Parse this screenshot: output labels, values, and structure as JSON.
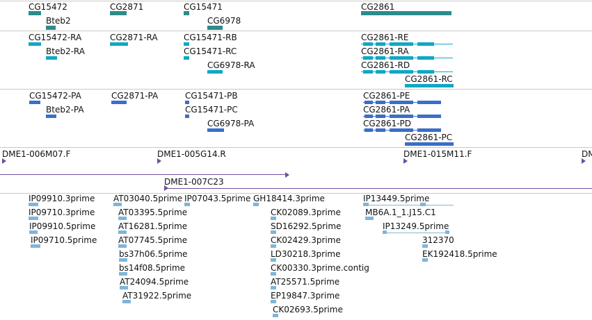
{
  "colors": {
    "gene": "#2e8b8b",
    "transcript": "#10a8c4",
    "protein": "#3a6fc9",
    "bac": "#6a4fa0",
    "est": "#7eb6d9",
    "separator": "#c8c8c8"
  },
  "gene_track": {
    "features": [
      {
        "label": "CG15472"
      },
      {
        "label": "Bteb2"
      },
      {
        "label": "CG2871"
      },
      {
        "label": "CG15471"
      },
      {
        "label": "CG6978"
      },
      {
        "label": "CG2861"
      }
    ]
  },
  "transcript_track": {
    "features": [
      {
        "label": "CG15472-RA"
      },
      {
        "label": "Bteb2-RA"
      },
      {
        "label": "CG2871-RA"
      },
      {
        "label": "CG15471-RB"
      },
      {
        "label": "CG15471-RC"
      },
      {
        "label": "CG6978-RA"
      },
      {
        "label": "CG2861-RE"
      },
      {
        "label": "CG2861-RA"
      },
      {
        "label": "CG2861-RD"
      },
      {
        "label": "CG2861-RC"
      }
    ]
  },
  "protein_track": {
    "features": [
      {
        "label": "CG15472-PA"
      },
      {
        "label": "Bteb2-PA"
      },
      {
        "label": "CG2871-PA"
      },
      {
        "label": "CG15471-PB"
      },
      {
        "label": "CG15471-PC"
      },
      {
        "label": "CG6978-PA"
      },
      {
        "label": "CG2861-PE"
      },
      {
        "label": "CG2861-PA"
      },
      {
        "label": "CG2861-PD"
      },
      {
        "label": "CG2861-PC"
      }
    ]
  },
  "bac_track": {
    "features": [
      {
        "label": "DME1-006M07.F"
      },
      {
        "label": "DME1-005G14.R"
      },
      {
        "label": "DME1-015M11.F"
      },
      {
        "label": "DM"
      },
      {
        "label": "DME1-007C23"
      }
    ]
  },
  "est_track": {
    "features": [
      {
        "label": "IP09910.3prime"
      },
      {
        "label": "IP09710.3prime"
      },
      {
        "label": "IP09910.5prime"
      },
      {
        "label": "IP09710.5prime"
      },
      {
        "label": "AT03040.5prime"
      },
      {
        "label": "IP07043.5prime"
      },
      {
        "label": "AT03395.5prime"
      },
      {
        "label": "AT16281.5prime"
      },
      {
        "label": "AT07745.5prime"
      },
      {
        "label": "bs37h06.5prime"
      },
      {
        "label": "bs14f08.5prime"
      },
      {
        "label": "AT24094.5prime"
      },
      {
        "label": "AT31922.5prime"
      },
      {
        "label": "GH18414.3prime"
      },
      {
        "label": "CK02089.3prime"
      },
      {
        "label": "SD16292.5prime"
      },
      {
        "label": "CK02429.3prime"
      },
      {
        "label": "LD30218.3prime"
      },
      {
        "label": "CK00330.3prime.contig"
      },
      {
        "label": "AT25571.5prime"
      },
      {
        "label": "EP19847.3prime"
      },
      {
        "label": "CK02693.5prime"
      },
      {
        "label": "IP13449.5prime"
      },
      {
        "label": "MB6A.1_1.J15.C1"
      },
      {
        "label": "IP13249.5prime"
      },
      {
        "label": "312370"
      },
      {
        "label": "EK192418.5prime"
      }
    ]
  }
}
